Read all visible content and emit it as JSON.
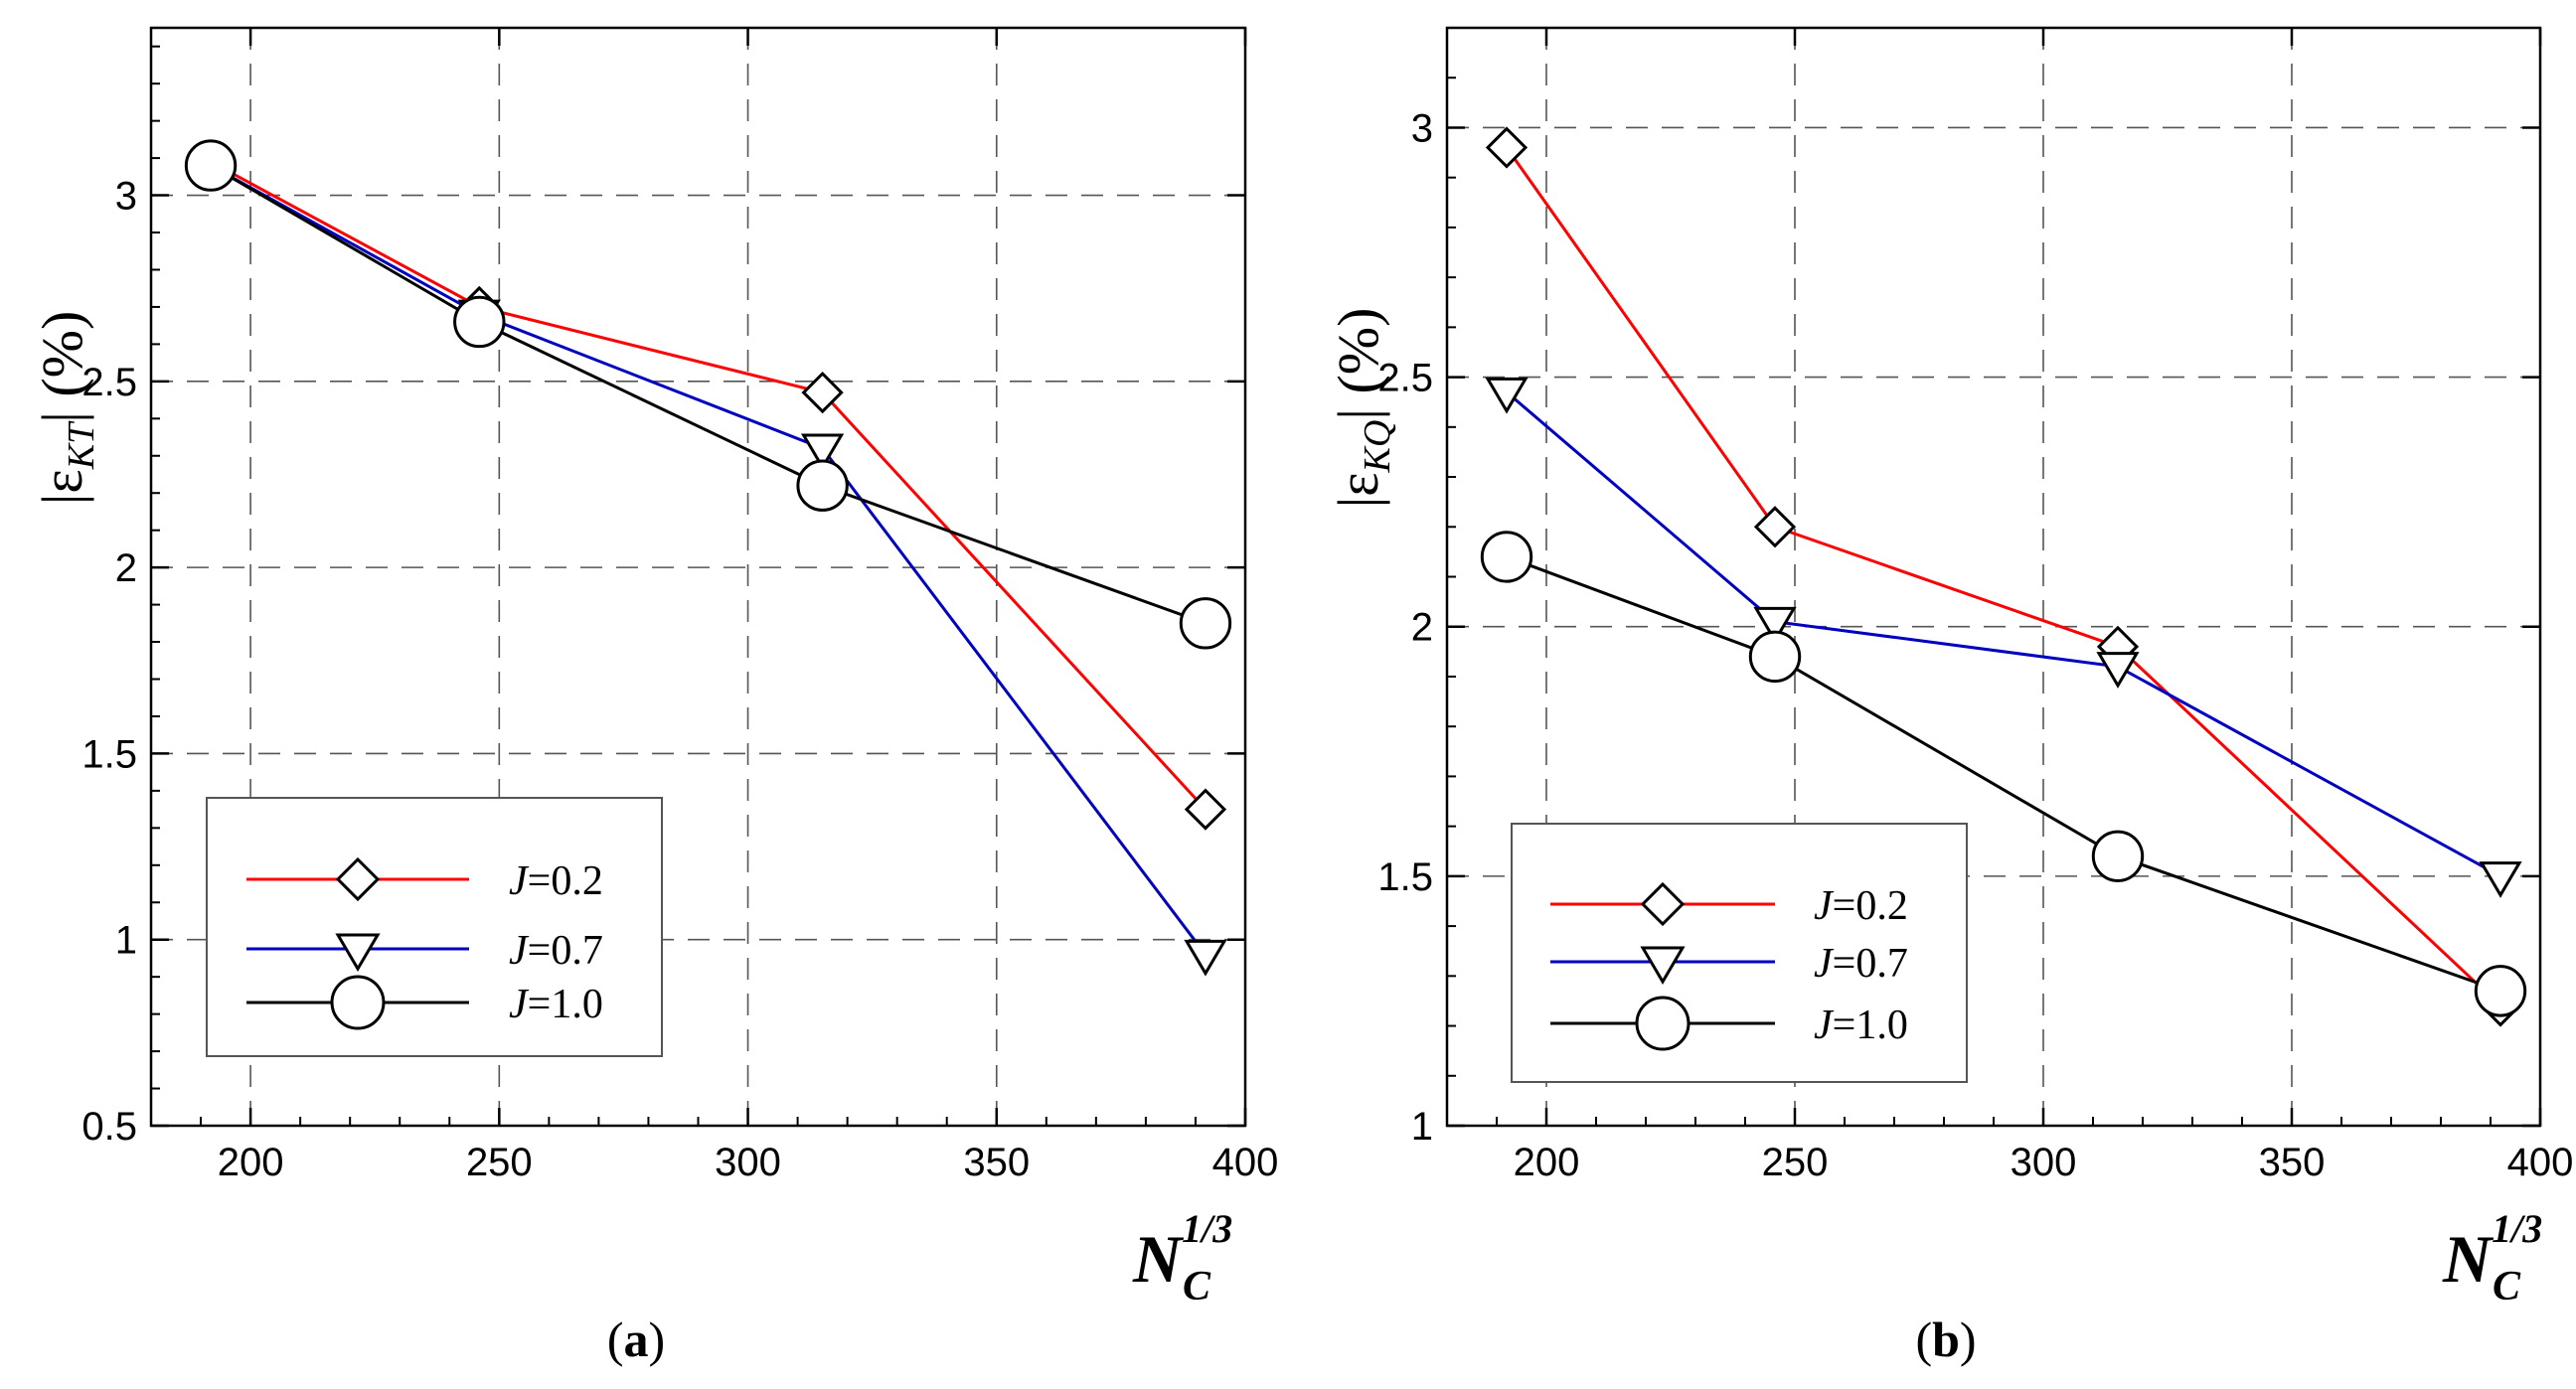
{
  "chart_data": [
    {
      "type": "line",
      "panel_label": "a",
      "ylabel": {
        "prefix": "|ε",
        "subscript": "KT",
        "suffix": "| (%)"
      },
      "xlabel": {
        "base": "N",
        "subscript": "C",
        "superscript": "1/3"
      },
      "xlim": [
        180,
        400
      ],
      "ylim": [
        0.5,
        3.45
      ],
      "xticks": [
        200,
        250,
        300,
        350,
        400
      ],
      "yticks": [
        0.5,
        1,
        1.5,
        2,
        2.5,
        3
      ],
      "ytick_labels": [
        "0.5",
        "1",
        "1.5",
        "2",
        "2.5",
        "3"
      ],
      "legend_position": "bottom-left",
      "series": [
        {
          "name": "J=0.2",
          "var": "J",
          "value_label": "=0.2",
          "color": "#ff0000",
          "marker": "diamond",
          "x": [
            192,
            246,
            315,
            392
          ],
          "y": [
            3.09,
            2.7,
            2.47,
            1.35
          ]
        },
        {
          "name": "J=0.7",
          "var": "J",
          "value_label": "=0.7",
          "color": "#0000c0",
          "marker": "triangle-down",
          "x": [
            192,
            246,
            315,
            392
          ],
          "y": [
            3.08,
            2.68,
            2.32,
            0.96
          ]
        },
        {
          "name": "J=1.0",
          "var": "J",
          "value_label": "=1.0",
          "color": "#000000",
          "marker": "circle",
          "x": [
            192,
            246,
            315,
            392
          ],
          "y": [
            3.08,
            2.66,
            2.22,
            1.85
          ]
        }
      ]
    },
    {
      "type": "line",
      "panel_label": "b",
      "ylabel": {
        "prefix": "|ε",
        "subscript": "KQ",
        "suffix": "| (%)"
      },
      "xlabel": {
        "base": "N",
        "subscript": "C",
        "superscript": "1/3"
      },
      "xlim": [
        180,
        400
      ],
      "ylim": [
        1,
        3.2
      ],
      "xticks": [
        200,
        250,
        300,
        350,
        400
      ],
      "yticks": [
        1,
        1.5,
        2,
        2.5,
        3
      ],
      "ytick_labels": [
        "1",
        "1.5",
        "2",
        "2.5",
        "3"
      ],
      "legend_position": "bottom-left",
      "series": [
        {
          "name": "J=0.2",
          "var": "J",
          "value_label": "=0.2",
          "color": "#ff0000",
          "marker": "diamond",
          "x": [
            192,
            246,
            315,
            392
          ],
          "y": [
            2.96,
            2.2,
            1.96,
            1.24
          ]
        },
        {
          "name": "J=0.7",
          "var": "J",
          "value_label": "=0.7",
          "color": "#0000c0",
          "marker": "triangle-down",
          "x": [
            192,
            246,
            315,
            392
          ],
          "y": [
            2.47,
            2.01,
            1.92,
            1.5
          ]
        },
        {
          "name": "J=1.0",
          "var": "J",
          "value_label": "=1.0",
          "color": "#000000",
          "marker": "circle",
          "x": [
            192,
            246,
            315,
            392
          ],
          "y": [
            2.14,
            1.94,
            1.54,
            1.27
          ]
        }
      ]
    }
  ]
}
